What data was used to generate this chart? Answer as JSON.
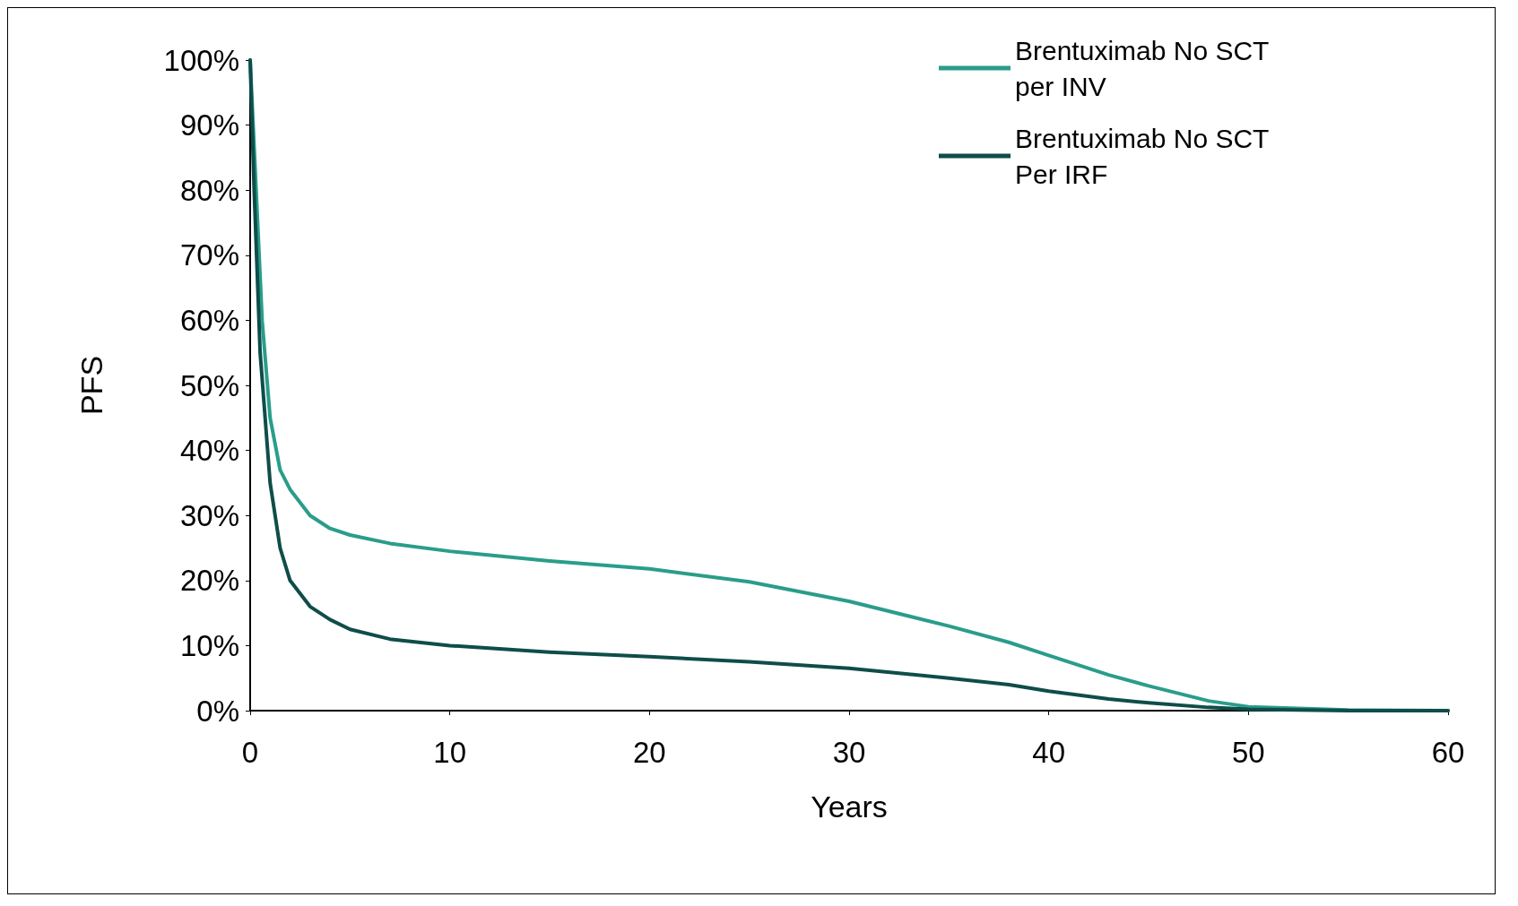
{
  "chart_data": {
    "type": "line",
    "xlabel": "Years",
    "ylabel": "PFS",
    "xlim": [
      0,
      60
    ],
    "xticks": [
      0,
      10,
      20,
      30,
      40,
      50,
      60
    ],
    "ylim": [
      0,
      100
    ],
    "yticks": [
      {
        "value": 0,
        "label": "0%"
      },
      {
        "value": 10,
        "label": "10%"
      },
      {
        "value": 20,
        "label": "20%"
      },
      {
        "value": 30,
        "label": "30%"
      },
      {
        "value": 40,
        "label": "40%"
      },
      {
        "value": 50,
        "label": "50%"
      },
      {
        "value": 60,
        "label": "60%"
      },
      {
        "value": 70,
        "label": "70%"
      },
      {
        "value": 80,
        "label": "80%"
      },
      {
        "value": 90,
        "label": "90%"
      },
      {
        "value": 100,
        "label": "100%"
      }
    ],
    "grid": false,
    "legend": "top right",
    "marker": "none",
    "line_style": "solid",
    "series": [
      {
        "name": "Brentuximab No SCT per INV",
        "color": "#2a9d8a",
        "x": [
          0,
          0.3,
          0.6,
          1,
          1.5,
          2,
          3,
          4,
          5,
          7,
          10,
          15,
          20,
          25,
          30,
          35,
          38,
          40,
          43,
          45,
          48,
          50,
          55,
          60
        ],
        "values": [
          100,
          80,
          60,
          45,
          37,
          34,
          30,
          28,
          27,
          25.7,
          24.5,
          23,
          21.8,
          19.8,
          16.8,
          13,
          10.5,
          8.5,
          5.5,
          3.8,
          1.5,
          0.6,
          0.1,
          0
        ]
      },
      {
        "name": "Brentuximab No SCT Per IRF",
        "color": "#0e4d4a",
        "x": [
          0,
          0.2,
          0.5,
          1,
          1.5,
          2,
          3,
          4,
          5,
          7,
          10,
          15,
          20,
          25,
          30,
          35,
          38,
          40,
          43,
          45,
          48,
          50,
          55,
          60
        ],
        "values": [
          100,
          80,
          55,
          35,
          25,
          20,
          16,
          14,
          12.5,
          11,
          10,
          9,
          8.3,
          7.5,
          6.5,
          5,
          4,
          3,
          1.8,
          1.2,
          0.5,
          0.2,
          0,
          0
        ]
      }
    ]
  }
}
